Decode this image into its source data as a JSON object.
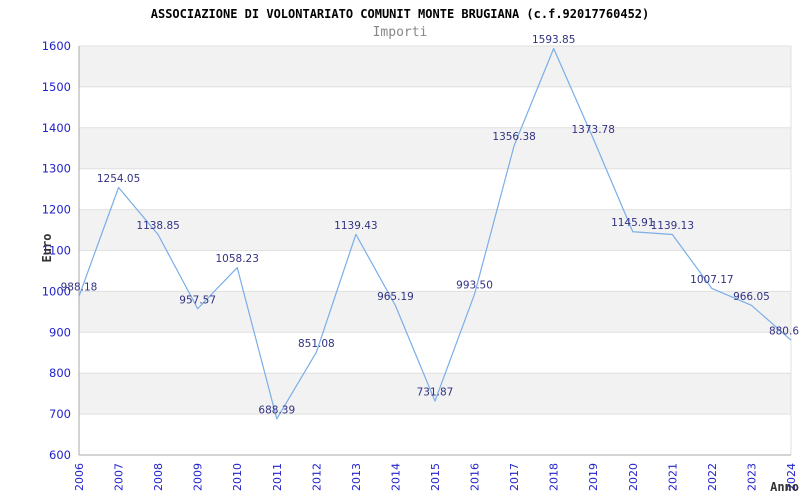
{
  "header": {
    "title": "ASSOCIAZIONE DI VOLONTARIATO COMUNIT MONTE BRUGIANA (c.f.92017760452)",
    "subtitle": "Importi"
  },
  "colors": {
    "background": "#ffffff",
    "line": "#7aaee8",
    "band_alt": "#f2f2f2",
    "band_base": "#ffffff",
    "gridline": "#e0e0e0",
    "axis_line": "#aaaaaa",
    "tick_text": "#2222cc",
    "point_label_text": "#323282",
    "title_text": "#000000",
    "subtitle_text": "#888888",
    "axis_title_text": "#333333"
  },
  "chart_data": {
    "type": "line",
    "title": "ASSOCIAZIONE DI VOLONTARIATO COMUNIT MONTE BRUGIANA (c.f.92017760452)",
    "subtitle": "Importi",
    "xlabel": "Anno",
    "ylabel": "Euro",
    "x": [
      "2006",
      "2007",
      "2008",
      "2009",
      "2010",
      "2011",
      "2012",
      "2013",
      "2014",
      "2015",
      "2016",
      "2017",
      "2018",
      "2019",
      "2020",
      "2021",
      "2022",
      "2023",
      "2024"
    ],
    "values": [
      988.18,
      1254.05,
      1138.85,
      957.57,
      1058.23,
      688.39,
      851.08,
      1139.43,
      965.19,
      731.87,
      993.5,
      1356.38,
      1593.85,
      1373.78,
      1145.91,
      1139.13,
      1007.17,
      966.05,
      880.6
    ],
    "point_labels": [
      "988.18",
      "1254.05",
      "1138.85",
      "957.57",
      "1058.23",
      "688.39",
      "851.08",
      "1139.43",
      "965.19",
      "731.87",
      "993.50",
      "1356.38",
      "1593.85",
      "1373.78",
      "1145.91",
      "1139.13",
      "1007.17",
      "966.05",
      "880.6"
    ],
    "ylim": [
      600,
      1600
    ],
    "ytick_step": 100,
    "grid": true,
    "band_fill": "alternating",
    "legend_position": "none"
  }
}
